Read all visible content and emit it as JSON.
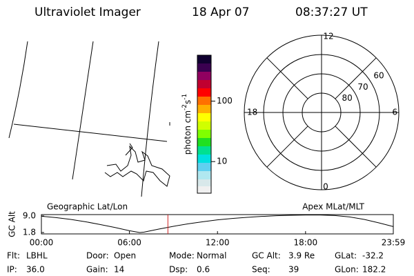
{
  "header": {
    "title": "Ultraviolet Imager",
    "date": "18 Apr 07",
    "time": "08:37:27 UT"
  },
  "colorbar": {
    "label": [
      "photon cm",
      "-2",
      "s",
      "-1"
    ],
    "log": true,
    "lim": [
      3,
      575
    ],
    "ticks": [
      10,
      100
    ]
  },
  "polar": {
    "mlt_labels": [
      "12",
      "6",
      "0",
      "18"
    ],
    "rlim": [
      50,
      90
    ],
    "rings": [
      60,
      70,
      80
    ]
  },
  "altitude_plot": {
    "left_label": "Geographic Lat/Lon",
    "right_label": "Apex MLat/MLT",
    "ylabel": "GC Alt",
    "ylim": [
      1.2,
      9.6
    ],
    "yticks": [
      {
        "value": 9,
        "label": "9.0"
      },
      {
        "value": 1.8,
        "label": "1.8"
      }
    ],
    "xlim": [
      0,
      23.98
    ],
    "xticks": [
      {
        "value": 0,
        "label": "00:00"
      },
      {
        "value": 6,
        "label": "06:00"
      },
      {
        "value": 12,
        "label": "12:00"
      },
      {
        "value": 18,
        "label": "18:00"
      },
      {
        "value": 23.98,
        "label": "23:59"
      }
    ],
    "x": [
      0,
      1,
      2,
      3,
      4,
      5,
      6,
      6.7,
      7,
      8,
      9,
      10,
      11,
      12,
      13,
      14,
      15,
      16,
      17,
      18,
      19,
      20,
      21,
      22,
      23,
      23.98
    ],
    "values": [
      8.9,
      8.3,
      7.5,
      6.5,
      5.3,
      4.0,
      2.6,
      1.8,
      2.0,
      3.3,
      4.5,
      5.6,
      6.5,
      7.3,
      7.9,
      8.4,
      8.8,
      9.1,
      9.3,
      9.4,
      9.4,
      9.2,
      8.6,
      7.5,
      6.0,
      4.4
    ],
    "current_time": 8.62,
    "marker_color": "#d02020"
  },
  "footer": {
    "rows": [
      [
        [
          "Flt:",
          "LBHL"
        ],
        [
          "Door:",
          "Open"
        ],
        [
          "Mode:",
          "Normal"
        ],
        [
          "GC Alt:",
          "3.9 Re"
        ],
        [
          "GLat:",
          "-32.2"
        ]
      ],
      [
        [
          "IP:",
          "36.0"
        ],
        [
          "Gain:",
          "14"
        ],
        [
          "Dsp:",
          "0.6"
        ],
        [
          "Seq:",
          "39"
        ],
        [
          "GLon:",
          "182.2"
        ]
      ]
    ]
  }
}
